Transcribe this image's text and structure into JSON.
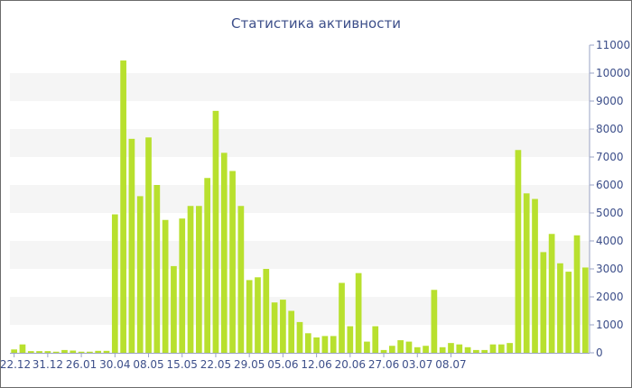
{
  "chart_data": {
    "type": "bar",
    "title": "Статистика активности",
    "xlabel": "",
    "ylabel": "",
    "ylim": [
      0,
      11000
    ],
    "y_ticks": [
      0,
      1000,
      2000,
      3000,
      4000,
      5000,
      6000,
      7000,
      8000,
      9000,
      10000,
      11000
    ],
    "y_axis_side": "right",
    "grid": "alternating horizontal bands",
    "bar_color": "#b8e02e",
    "band_color": "#f5f5f5",
    "text_color": "#3d4f8a",
    "x_tick_labels": [
      {
        "label": "22.12",
        "index": 0
      },
      {
        "label": "31.12",
        "index": 4
      },
      {
        "label": "26.01",
        "index": 8
      },
      {
        "label": "30.04",
        "index": 12
      },
      {
        "label": "08.05",
        "index": 16
      },
      {
        "label": "15.05",
        "index": 20
      },
      {
        "label": "22.05",
        "index": 24
      },
      {
        "label": "29.05",
        "index": 28
      },
      {
        "label": "05.06",
        "index": 32
      },
      {
        "label": "12.06",
        "index": 36
      },
      {
        "label": "20.06",
        "index": 40
      },
      {
        "label": "27.06",
        "index": 44
      },
      {
        "label": "03.07",
        "index": 48
      },
      {
        "label": "08.07",
        "index": 52
      }
    ],
    "values": [
      120,
      300,
      60,
      60,
      60,
      40,
      100,
      80,
      40,
      40,
      70,
      70,
      4950,
      10450,
      7650,
      5600,
      7700,
      6000,
      4750,
      3100,
      4800,
      5250,
      5250,
      6250,
      8650,
      7150,
      6500,
      5250,
      2600,
      2700,
      3000,
      1800,
      1900,
      1500,
      1100,
      700,
      550,
      600,
      600,
      2500,
      950,
      2850,
      400,
      950,
      100,
      250,
      450,
      400,
      200,
      250,
      2250,
      200,
      350,
      300,
      200,
      100,
      100,
      300,
      300,
      350,
      7250,
      5700,
      5500,
      3600,
      4250,
      3200,
      2900,
      4200,
      3050
    ]
  }
}
